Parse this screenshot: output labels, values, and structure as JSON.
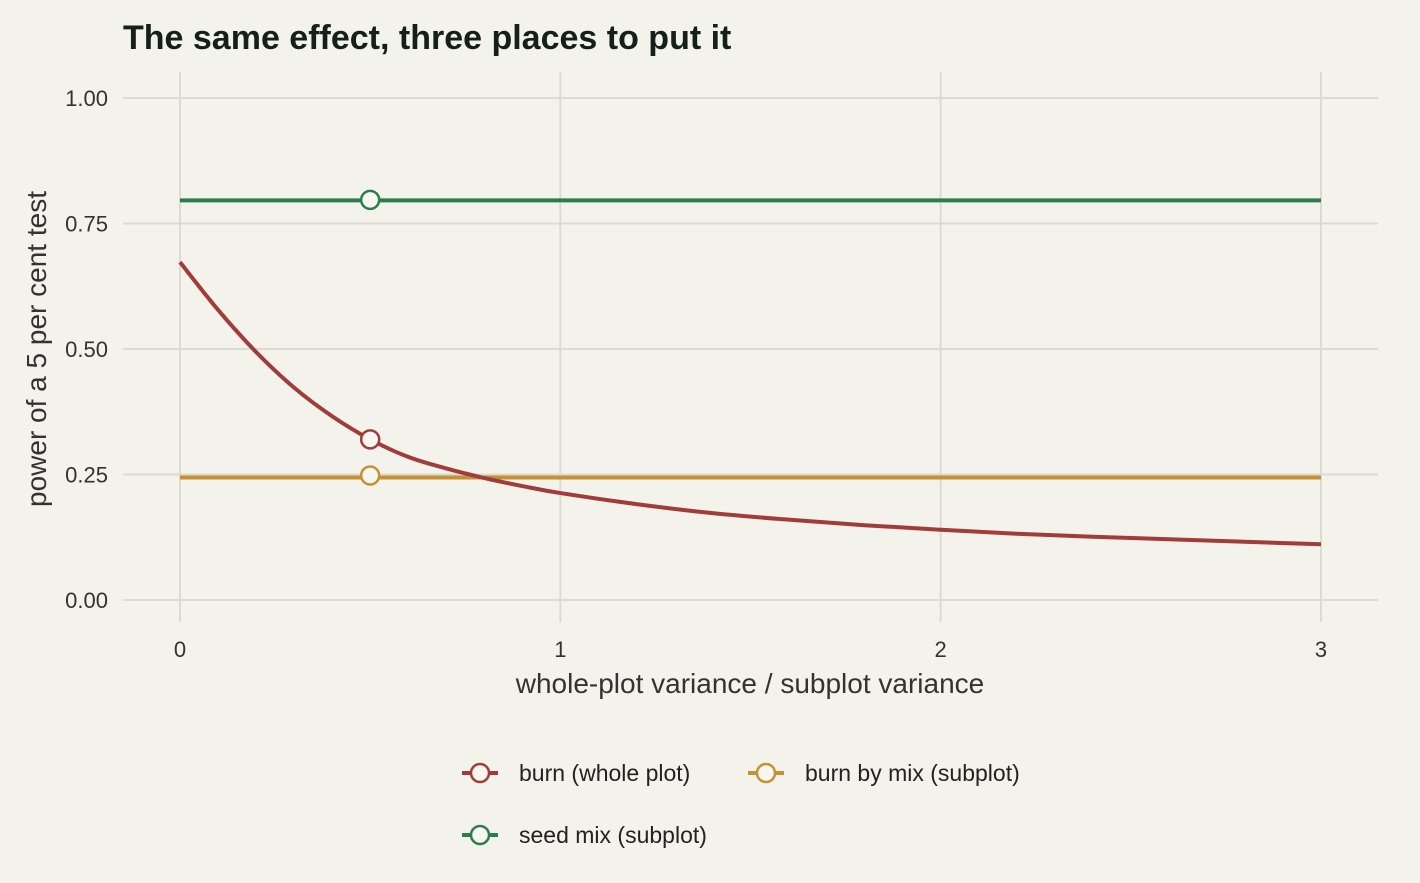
{
  "chart_data": {
    "type": "line",
    "title": "The same effect, three places to put it",
    "xlabel": "whole-plot variance / subplot variance",
    "ylabel": "power of a 5 per cent test",
    "xlim": [
      0,
      3
    ],
    "ylim": [
      0,
      1
    ],
    "x_ticks": [
      0,
      1,
      2,
      3
    ],
    "y_ticks": [
      "0.00",
      "0.25",
      "0.50",
      "0.75",
      "1.00"
    ],
    "grid": true,
    "legend_position": "bottom",
    "marker_x": 0.5,
    "series": [
      {
        "name": "burn (whole plot)",
        "color": "#a13c3a",
        "x": [
          0,
          0.1,
          0.2,
          0.3,
          0.4,
          0.5,
          0.6,
          0.7,
          0.8,
          0.9,
          1.0,
          1.2,
          1.4,
          1.6,
          1.8,
          2.0,
          2.2,
          2.4,
          2.6,
          2.8,
          3.0
        ],
        "y": [
          0.673,
          0.578,
          0.494,
          0.423,
          0.366,
          0.32,
          0.285,
          0.262,
          0.243,
          0.227,
          0.213,
          0.191,
          0.173,
          0.16,
          0.149,
          0.14,
          0.132,
          0.126,
          0.121,
          0.116,
          0.111
        ],
        "marker": 0.32
      },
      {
        "name": "burn by mix (subplot)",
        "color": "#c49232",
        "x": [
          0,
          3
        ],
        "y": [
          0.244,
          0.244
        ],
        "marker": 0.248
      },
      {
        "name": "seed mix (subplot)",
        "color": "#2c7c50",
        "x": [
          0,
          3
        ],
        "y": [
          0.796,
          0.796
        ],
        "marker": 0.797
      }
    ]
  }
}
